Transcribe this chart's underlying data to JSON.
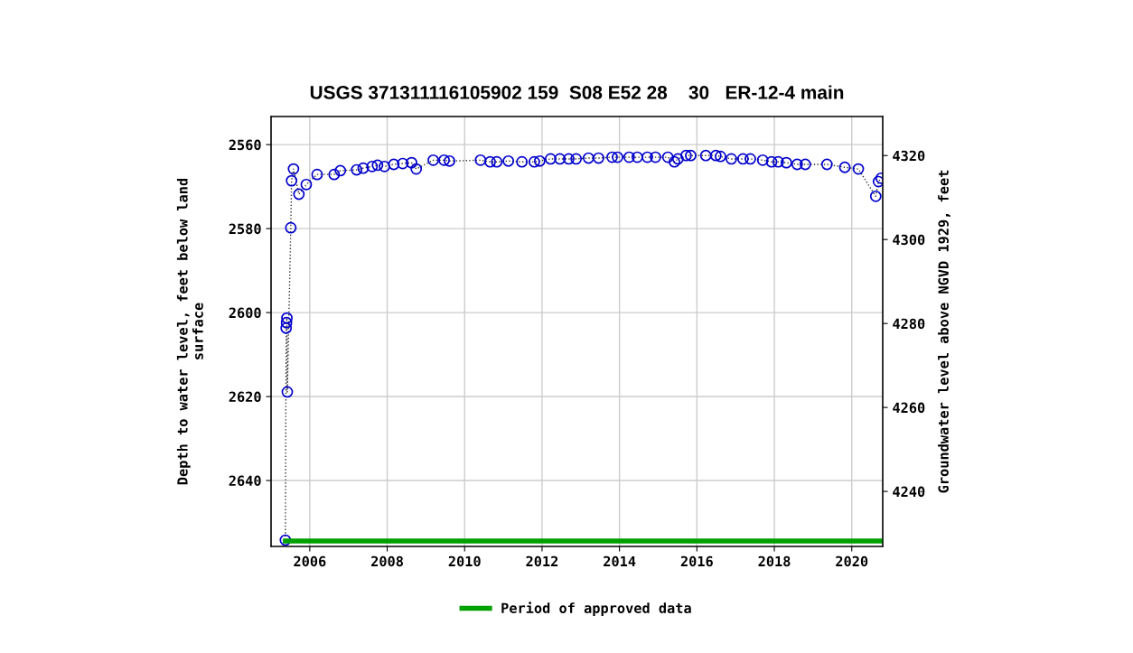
{
  "chart_data": {
    "type": "line",
    "title": "USGS 371311116105902 159  S08 E52 28    30   ER-12-4 main",
    "xlabel": null,
    "ylabel": "Depth to water level, feet below land\nsurface",
    "y2label": "Groundwater level above NGVD 1929, feet",
    "xlim": [
      2005.0,
      2020.8
    ],
    "xticks": [
      2006,
      2008,
      2010,
      2012,
      2014,
      2016,
      2018,
      2020
    ],
    "ylim": [
      2655.7,
      2553.3
    ],
    "yticks": [
      2560,
      2580,
      2600,
      2620,
      2640
    ],
    "y2lim": [
      4226.9,
      4329.3
    ],
    "y2ticks": [
      4240,
      4260,
      4280,
      4300,
      4320
    ],
    "grid": true,
    "legend": "bottom",
    "series": [
      {
        "color": "#0000cc",
        "marker": "circle",
        "line_style": "dotted",
        "x": [
          2005.37,
          2005.39,
          2005.4,
          2005.41,
          2005.42,
          2005.51,
          2005.53,
          2005.58,
          2005.72,
          2005.91,
          2006.19,
          2006.63,
          2006.79,
          2007.21,
          2007.38,
          2007.61,
          2007.75,
          2007.93,
          2008.17,
          2008.4,
          2008.63,
          2008.75,
          2009.19,
          2009.47,
          2009.61,
          2010.41,
          2010.66,
          2010.83,
          2011.13,
          2011.48,
          2011.8,
          2011.94,
          2012.22,
          2012.46,
          2012.69,
          2012.88,
          2013.2,
          2013.46,
          2013.81,
          2013.95,
          2014.25,
          2014.46,
          2014.72,
          2014.93,
          2015.25,
          2015.42,
          2015.51,
          2015.72,
          2015.84,
          2016.23,
          2016.49,
          2016.61,
          2016.89,
          2017.19,
          2017.38,
          2017.7,
          2017.93,
          2018.1,
          2018.31,
          2018.59,
          2018.8,
          2019.36,
          2019.82,
          2020.17,
          2020.62,
          2020.69,
          2020.76
        ],
        "values": [
          2654.2,
          2603.7,
          2602.4,
          2601.3,
          2618.9,
          2579.8,
          2568.6,
          2565.8,
          2571.8,
          2569.5,
          2567.1,
          2567.1,
          2566.2,
          2566.0,
          2565.6,
          2565.2,
          2564.9,
          2565.2,
          2564.7,
          2564.5,
          2564.3,
          2565.8,
          2563.7,
          2563.7,
          2563.9,
          2563.7,
          2564.1,
          2564.1,
          2563.9,
          2564.1,
          2564.1,
          2563.9,
          2563.4,
          2563.4,
          2563.4,
          2563.4,
          2563.2,
          2563.2,
          2563.0,
          2563.0,
          2563.0,
          2563.0,
          2563.0,
          2563.0,
          2563.0,
          2564.1,
          2563.4,
          2562.6,
          2562.6,
          2562.6,
          2562.6,
          2562.8,
          2563.4,
          2563.4,
          2563.4,
          2563.7,
          2564.1,
          2564.1,
          2564.3,
          2564.7,
          2564.7,
          2564.7,
          2565.4,
          2565.8,
          2572.3,
          2568.8,
          2568.0
        ]
      },
      {
        "name": "Period of approved data",
        "color": "#00a000",
        "marker": "none",
        "line_style": "solid",
        "x": [
          2005.37,
          2020.8
        ],
        "values": [
          2654.4,
          2654.4
        ]
      }
    ]
  }
}
